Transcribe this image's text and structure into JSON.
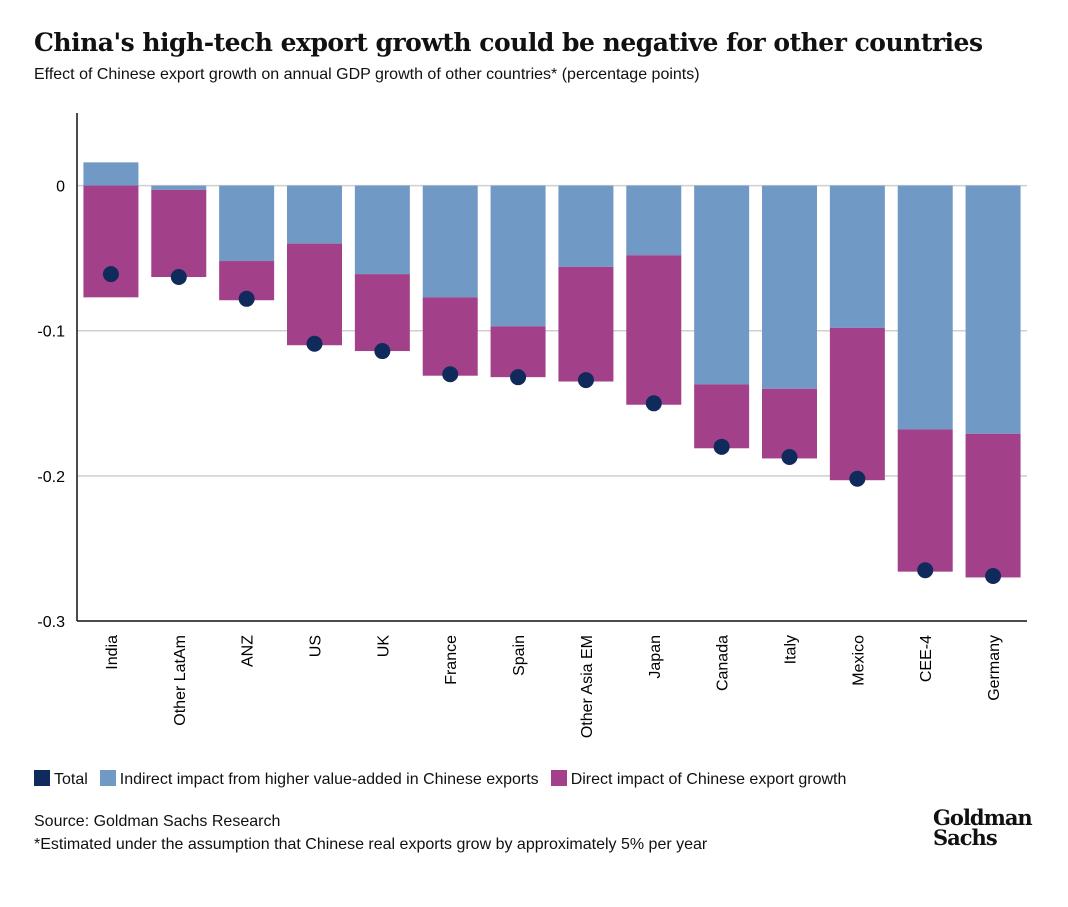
{
  "title": "China's high-tech export growth could be negative for other countries",
  "subtitle": "Effect of Chinese export growth on annual GDP growth of other countries* (percentage points)",
  "source": "Source: Goldman Sachs Research",
  "note": "*Estimated under the assumption that Chinese real exports grow by approximately 5% per year",
  "logo": "Goldman Sachs",
  "colors": {
    "total": "#102a5c",
    "indirect": "#7199c6",
    "direct": "#a3408a"
  },
  "chart_data": {
    "type": "bar",
    "stacked": true,
    "categories": [
      "India",
      "Other LatAm",
      "ANZ",
      "US",
      "UK",
      "France",
      "Spain",
      "Other Asia EM",
      "Japan",
      "Canada",
      "Italy",
      "Mexico",
      "CEE-4",
      "Germany"
    ],
    "series": [
      {
        "name": "Total",
        "kind": "dot",
        "values": [
          -0.061,
          -0.063,
          -0.078,
          -0.109,
          -0.114,
          -0.13,
          -0.132,
          -0.134,
          -0.15,
          -0.18,
          -0.187,
          -0.202,
          -0.265,
          -0.269
        ]
      },
      {
        "name": "Indirect impact from higher value-added in Chinese exports",
        "values": [
          0.016,
          -0.003,
          -0.052,
          -0.04,
          -0.061,
          -0.077,
          -0.097,
          -0.056,
          -0.048,
          -0.137,
          -0.14,
          -0.098,
          -0.168,
          -0.171
        ]
      },
      {
        "name": "Direct impact of Chinese export growth",
        "values": [
          -0.077,
          -0.06,
          -0.027,
          -0.07,
          -0.053,
          -0.054,
          -0.035,
          -0.079,
          -0.103,
          -0.044,
          -0.048,
          -0.105,
          -0.098,
          -0.099
        ]
      }
    ],
    "yticks": [
      "0",
      "-0.1",
      "-0.2",
      "-0.3"
    ],
    "ytick_values": [
      0,
      -0.1,
      -0.2,
      -0.3
    ],
    "ylim": [
      -0.3,
      0.05
    ],
    "grid": true,
    "legend": "bottom"
  }
}
